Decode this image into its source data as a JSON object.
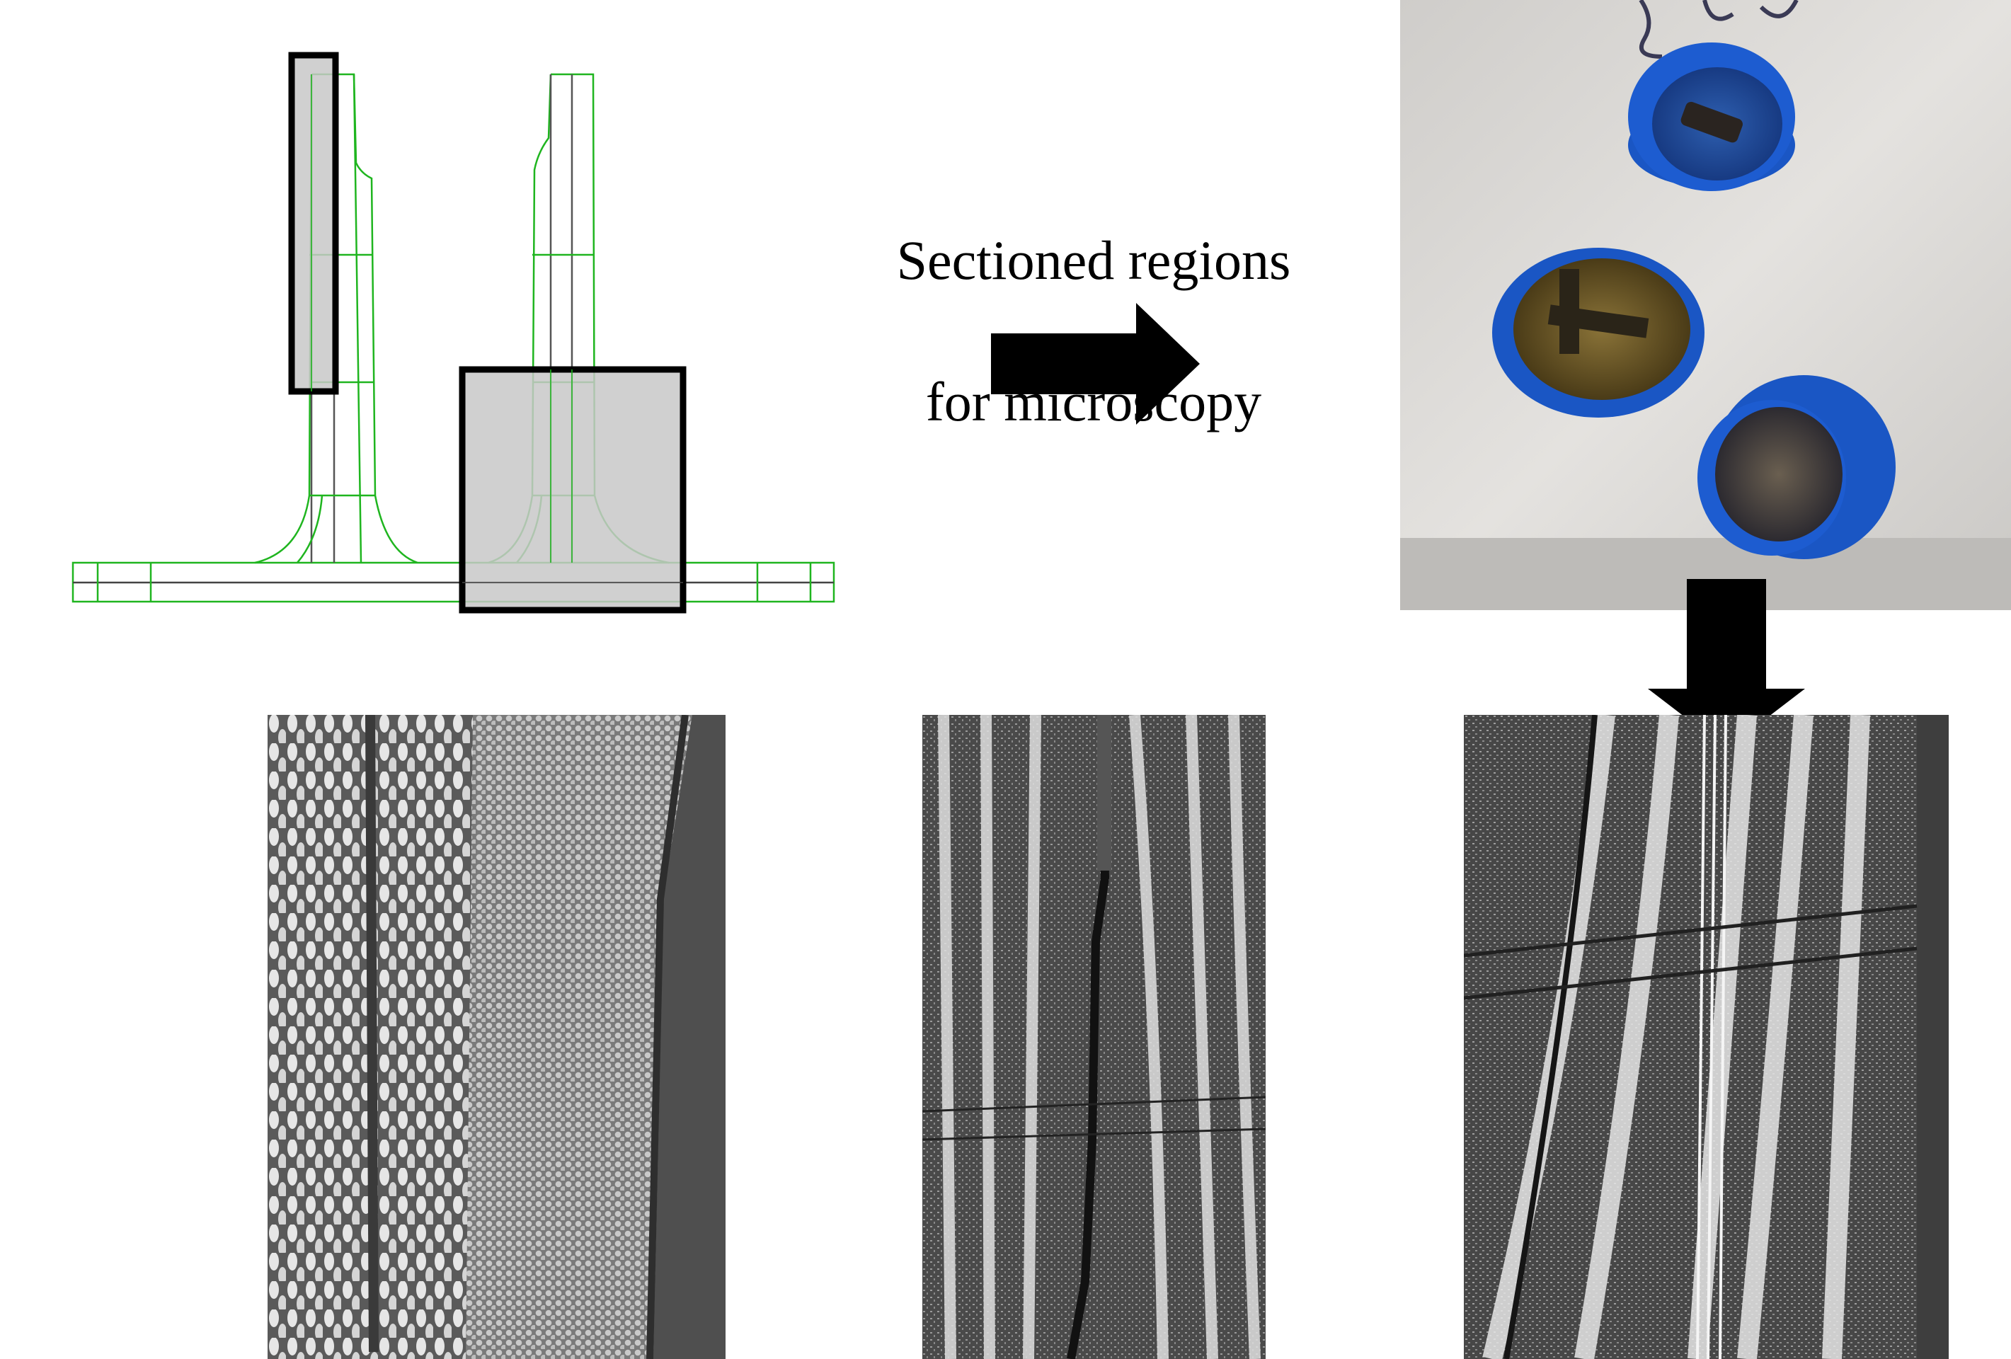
{
  "caption": {
    "line1": "Sectioned regions",
    "line2": "for microscopy"
  },
  "colors": {
    "mesh_line": "#1fb51f",
    "mesh_dark": "#333333",
    "section_fill": "#c8c8c8",
    "section_border": "#000000",
    "arrow": "#000000",
    "potting_cup": "#1a56c4",
    "resin": "#7a6530",
    "sample_background": "#d9d7d5",
    "micrograph_gray": "#6a6a6a"
  },
  "panels": {
    "fe_model": "t-joint-mesh-diagram",
    "photo": "mounted-specimens-photo",
    "micrographs": [
      "micrograph-left",
      "micrograph-middle",
      "micrograph-right"
    ]
  }
}
